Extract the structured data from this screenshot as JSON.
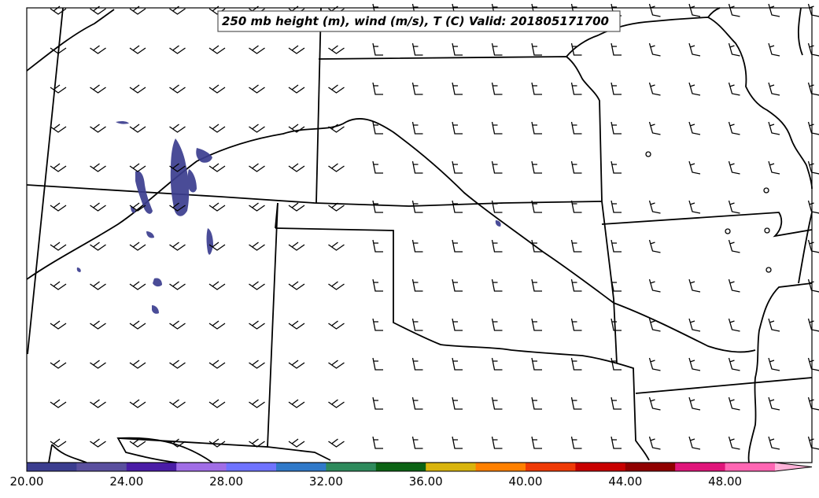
{
  "title": "250 mb height (m), wind (m/s), T (C) Valid: 201805171700",
  "colorbar": {
    "tick_labels": [
      "20.00",
      "24.00",
      "28.00",
      "32.00",
      "36.00",
      "40.00",
      "44.00",
      "48.00"
    ],
    "tick_values": [
      20,
      24,
      28,
      32,
      36,
      40,
      44,
      48
    ],
    "min": 20,
    "max": 51.5,
    "colors": [
      "#3b3d8f",
      "#5a4f9e",
      "#4a1ca6",
      "#a06de6",
      "#6f73ff",
      "#3079c9",
      "#2e8a5c",
      "#0b6314",
      "#d9b40d",
      "#ff8000",
      "#ef3a06",
      "#c80000",
      "#900000",
      "#e0157a",
      "#ff66b3",
      "#ffb3d9"
    ]
  },
  "barbs": {
    "calm_positions_note": "",
    "rows": [
      {
        "row": 0,
        "count": 20
      },
      {
        "row": 1,
        "count": 20
      }
    ]
  }
}
